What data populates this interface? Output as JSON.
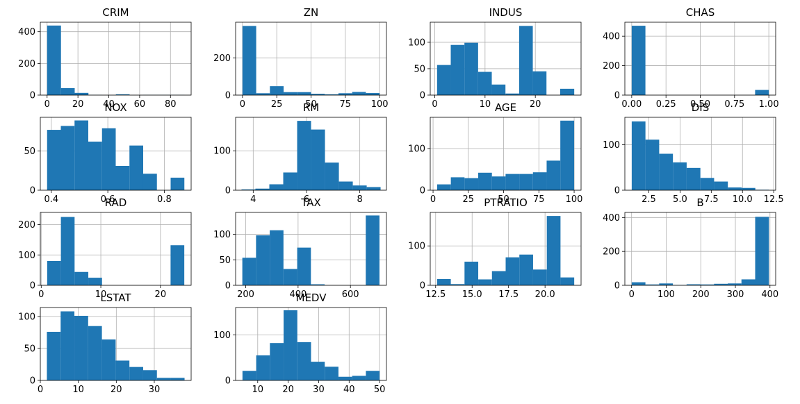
{
  "figure": {
    "bar_color": "#1f77b4",
    "grid_color": "#b0b0b0"
  },
  "chart_data": [
    {
      "type": "bar",
      "title": "CRIM",
      "xlim": [
        -4.4,
        93.4
      ],
      "ylim": [
        0,
        460
      ],
      "bin_edges": [
        0.0,
        9.0,
        17.9,
        26.8,
        35.7,
        44.6,
        53.5,
        62.4,
        71.3,
        80.2,
        89.0
      ],
      "counts": [
        439,
        44,
        14,
        1,
        0,
        5,
        0,
        1,
        1,
        1
      ],
      "xticks": [
        0,
        20,
        40,
        60,
        80
      ],
      "xtick_labels": [
        "0",
        "20",
        "40",
        "60",
        "80"
      ],
      "yticks": [
        0,
        200,
        400
      ],
      "ytick_labels": [
        "0",
        "200",
        "400"
      ]
    },
    {
      "type": "bar",
      "title": "ZN",
      "xlim": [
        -5,
        105
      ],
      "ylim": [
        0,
        392
      ],
      "bin_edges": [
        0,
        10,
        20,
        30,
        40,
        50,
        60,
        70,
        80,
        90,
        100
      ],
      "counts": [
        372,
        10,
        48,
        16,
        16,
        7,
        4,
        10,
        17,
        11
      ],
      "xticks": [
        0,
        25,
        50,
        75,
        100
      ],
      "xtick_labels": [
        "0",
        "25",
        "50",
        "75",
        "100"
      ],
      "yticks": [
        0,
        200
      ],
      "ytick_labels": [
        "0",
        "200"
      ]
    },
    {
      "type": "bar",
      "title": "INDUS",
      "xlim": [
        -0.9,
        29.1
      ],
      "ylim": [
        0,
        138
      ],
      "bin_edges": [
        0.46,
        3.18,
        5.9,
        8.62,
        11.34,
        14.06,
        16.78,
        19.5,
        22.22,
        24.94,
        27.74
      ],
      "counts": [
        57,
        95,
        99,
        44,
        20,
        3,
        131,
        45,
        0,
        12
      ],
      "xticks": [
        0,
        10,
        20
      ],
      "xtick_labels": [
        "0",
        "10",
        "20"
      ],
      "yticks": [
        0,
        50,
        100
      ],
      "ytick_labels": [
        "0",
        "50",
        "100"
      ]
    },
    {
      "type": "bar",
      "title": "CHAS",
      "xlim": [
        -0.05,
        1.05
      ],
      "ylim": [
        0,
        495
      ],
      "bin_edges": [
        0.0,
        0.1,
        0.2,
        0.3,
        0.4,
        0.5,
        0.6,
        0.7,
        0.8,
        0.9,
        1.0
      ],
      "counts": [
        471,
        0,
        0,
        0,
        0,
        0,
        0,
        0,
        0,
        35
      ],
      "xticks": [
        0.0,
        0.25,
        0.5,
        0.75,
        1.0
      ],
      "xtick_labels": [
        "0.00",
        "0.25",
        "0.50",
        "0.75",
        "1.00"
      ],
      "yticks": [
        0,
        200,
        400
      ],
      "ytick_labels": [
        "0",
        "200",
        "400"
      ]
    },
    {
      "type": "bar",
      "title": "NOX",
      "xlim": [
        0.361,
        0.895
      ],
      "ylim": [
        0,
        93
      ],
      "bin_edges": [
        0.385,
        0.4336,
        0.4822,
        0.5308,
        0.5794,
        0.628,
        0.6766,
        0.7252,
        0.7738,
        0.8224,
        0.871
      ],
      "counts": [
        77,
        82,
        89,
        62,
        79,
        31,
        57,
        21,
        0,
        16
      ],
      "xticks": [
        0.4,
        0.6,
        0.8
      ],
      "xtick_labels": [
        "0.4",
        "0.6",
        "0.8"
      ],
      "yticks": [
        0,
        50
      ],
      "ytick_labels": [
        "0",
        "50"
      ]
    },
    {
      "type": "bar",
      "title": "RM",
      "xlim": [
        3.34,
        9.0
      ],
      "ylim": [
        0,
        185
      ],
      "bin_edges": [
        3.561,
        4.083,
        4.605,
        5.127,
        5.649,
        6.171,
        6.693,
        7.215,
        7.737,
        8.259,
        8.78
      ],
      "counts": [
        2,
        4,
        15,
        45,
        176,
        154,
        70,
        22,
        12,
        8
      ],
      "xticks": [
        4,
        6,
        8
      ],
      "xtick_labels": [
        "4",
        "6",
        "8"
      ],
      "yticks": [
        0,
        100
      ],
      "ytick_labels": [
        "0",
        "100"
      ]
    },
    {
      "type": "bar",
      "title": "AGE",
      "xlim": [
        -2.0,
        104.9
      ],
      "ylim": [
        0,
        175
      ],
      "bin_edges": [
        2.9,
        12.6,
        22.3,
        32.0,
        41.7,
        51.4,
        61.1,
        70.8,
        80.5,
        90.2,
        100.0
      ],
      "counts": [
        14,
        31,
        29,
        42,
        33,
        39,
        39,
        43,
        71,
        167
      ],
      "xticks": [
        0,
        25,
        50,
        75,
        100
      ],
      "xtick_labels": [
        "0",
        "25",
        "50",
        "75",
        "100"
      ],
      "yticks": [
        0,
        100
      ],
      "ytick_labels": [
        "0",
        "100"
      ]
    },
    {
      "type": "bar",
      "title": "DIS",
      "xlim": [
        0.58,
        12.66
      ],
      "ylim": [
        0,
        160
      ],
      "bin_edges": [
        1.13,
        2.23,
        3.33,
        4.43,
        5.53,
        6.63,
        7.73,
        8.83,
        9.93,
        11.03,
        12.13
      ],
      "counts": [
        151,
        111,
        80,
        61,
        49,
        27,
        19,
        6,
        5,
        1
      ],
      "xticks": [
        2.5,
        5.0,
        7.5,
        10.0,
        12.5
      ],
      "xtick_labels": [
        "2.5",
        "5.0",
        "7.5",
        "10.0",
        "12.5"
      ],
      "yticks": [
        0,
        100
      ],
      "ytick_labels": [
        "0",
        "100"
      ]
    },
    {
      "type": "bar",
      "title": "RAD",
      "xlim": [
        -0.15,
        25.15
      ],
      "ylim": [
        0,
        240
      ],
      "bin_edges": [
        1.0,
        3.3,
        5.6,
        7.9,
        10.2,
        12.5,
        14.8,
        17.1,
        19.4,
        21.7,
        24.0
      ],
      "counts": [
        80,
        225,
        44,
        25,
        0,
        0,
        0,
        0,
        0,
        132
      ],
      "xticks": [
        0,
        10,
        20
      ],
      "xtick_labels": [
        "0",
        "10",
        "20"
      ],
      "yticks": [
        0,
        100,
        200
      ],
      "ytick_labels": [
        "0",
        "100",
        "200"
      ]
    },
    {
      "type": "bar",
      "title": "TAX",
      "xlim": [
        161.4,
        737.6
      ],
      "ylim": [
        0,
        143
      ],
      "bin_edges": [
        187.0,
        239.4,
        291.8,
        344.2,
        396.6,
        449.0,
        501.4,
        553.8,
        606.2,
        658.6,
        711.0
      ],
      "counts": [
        54,
        98,
        108,
        32,
        74,
        2,
        0,
        0,
        0,
        137
      ],
      "xticks": [
        200,
        400,
        600
      ],
      "xtick_labels": [
        "200",
        "400",
        "600"
      ],
      "yticks": [
        0,
        50,
        100
      ],
      "ytick_labels": [
        "0",
        "50",
        "100"
      ]
    },
    {
      "type": "bar",
      "title": "PTRATIO",
      "xlim": [
        12.13,
        22.47
      ],
      "ylim": [
        0,
        185
      ],
      "bin_edges": [
        12.6,
        13.54,
        14.48,
        15.42,
        16.36,
        17.3,
        18.24,
        19.18,
        20.12,
        21.06,
        22.0
      ],
      "counts": [
        16,
        3,
        60,
        15,
        36,
        71,
        78,
        40,
        176,
        20
      ],
      "xticks": [
        12.5,
        15.0,
        17.5,
        20.0
      ],
      "xtick_labels": [
        "12.5",
        "15.0",
        "17.5",
        "20.0"
      ],
      "yticks": [
        0,
        100
      ],
      "ytick_labels": [
        "0",
        "100"
      ]
    },
    {
      "type": "bar",
      "title": "B",
      "xlim": [
        -19.5,
        416.5
      ],
      "ylim": [
        0,
        430
      ],
      "bin_edges": [
        0.32,
        39.98,
        79.63,
        119.29,
        158.95,
        198.61,
        238.26,
        277.92,
        317.58,
        357.23,
        396.9
      ],
      "counts": [
        18,
        5,
        11,
        2,
        6,
        5,
        9,
        11,
        35,
        404
      ],
      "xticks": [
        0,
        100,
        200,
        300,
        400
      ],
      "xtick_labels": [
        "0",
        "100",
        "200",
        "300",
        "400"
      ],
      "yticks": [
        0,
        200,
        400
      ],
      "ytick_labels": [
        "0",
        "200",
        "400"
      ]
    },
    {
      "type": "bar",
      "title": "LSTAT",
      "xlim": [
        0.0,
        39.7
      ],
      "ylim": [
        0,
        114
      ],
      "bin_edges": [
        1.73,
        5.35,
        8.97,
        12.59,
        16.21,
        19.83,
        23.45,
        27.07,
        30.69,
        34.31,
        37.97
      ],
      "counts": [
        76,
        108,
        101,
        85,
        64,
        31,
        21,
        16,
        4,
        4
      ],
      "xticks": [
        0,
        10,
        20,
        30
      ],
      "xtick_labels": [
        "0",
        "10",
        "20",
        "30"
      ],
      "yticks": [
        0,
        50,
        100
      ],
      "ytick_labels": [
        "0",
        "50",
        "100"
      ]
    },
    {
      "type": "bar",
      "title": "MEDV",
      "xlim": [
        2.75,
        52.25
      ],
      "ylim": [
        0,
        160
      ],
      "bin_edges": [
        5.0,
        9.5,
        14.0,
        18.5,
        23.0,
        27.5,
        32.0,
        36.5,
        41.0,
        45.5,
        50.0
      ],
      "counts": [
        21,
        55,
        82,
        154,
        84,
        41,
        30,
        8,
        10,
        21
      ],
      "xticks": [
        10,
        20,
        30,
        40,
        50
      ],
      "xtick_labels": [
        "10",
        "20",
        "30",
        "40",
        "50"
      ],
      "yticks": [
        0,
        100
      ],
      "ytick_labels": [
        "0",
        "100"
      ]
    }
  ]
}
